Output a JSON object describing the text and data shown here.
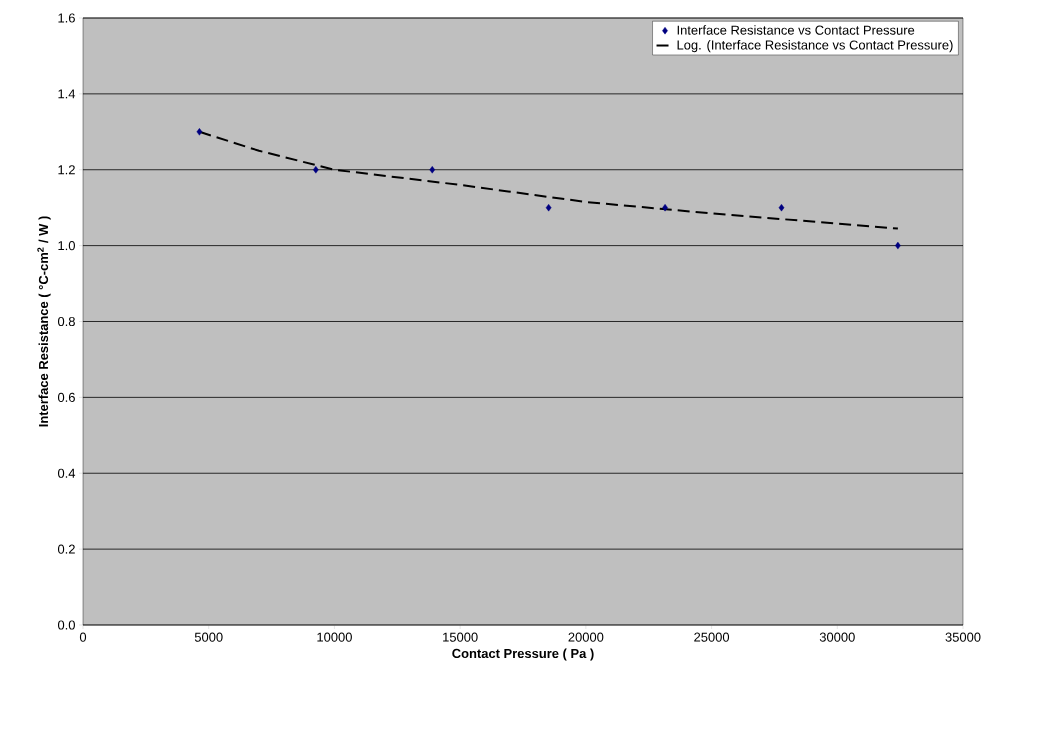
{
  "chart_data": {
    "type": "scatter",
    "xlabel": "Contact Pressure ( Pa )",
    "ylabel": "Interface Resistance ( °C-cm$^{2}$ / W )",
    "x": [
      4630,
      9260,
      13890,
      18520,
      23150,
      27780,
      32410
    ],
    "series": [
      {
        "name": "Interface Resistance vs Contact Pressure",
        "type": "scatter",
        "color": "#000080",
        "marker": "diamond",
        "values": [
          1.3,
          1.2,
          1.2,
          1.1,
          1.1,
          1.1,
          1.0
        ]
      },
      {
        "name": "Log. (Interface Resistance vs Contact Pressure)",
        "type": "line",
        "color": "#000000",
        "marker": "none",
        "line_style": "dashed",
        "x": [
          4630,
          7000,
          10000,
          15000,
          20000,
          25000,
          32410
        ],
        "values": [
          1.3,
          1.25,
          1.2,
          1.16,
          1.115,
          1.085,
          1.045
        ]
      }
    ],
    "xlim": [
      0,
      35000
    ],
    "xticks": [
      0,
      5000,
      10000,
      15000,
      20000,
      25000,
      30000,
      35000
    ],
    "ylim": [
      0,
      1.6
    ],
    "yticks": [
      {
        "value": 0,
        "label": "0.0"
      },
      {
        "value": 0.2,
        "label": "0.2"
      },
      {
        "value": 0.4,
        "label": "0.4"
      },
      {
        "value": 0.6,
        "label": "0.6"
      },
      {
        "value": 0.8,
        "label": "0.8"
      },
      {
        "value": 1.0,
        "label": "1.0"
      },
      {
        "value": 1.2,
        "label": "1.2"
      },
      {
        "value": 1.4,
        "label": "1.4"
      },
      {
        "value": 1.6,
        "label": "1.6"
      }
    ],
    "grid": "y",
    "legend": "top right"
  }
}
